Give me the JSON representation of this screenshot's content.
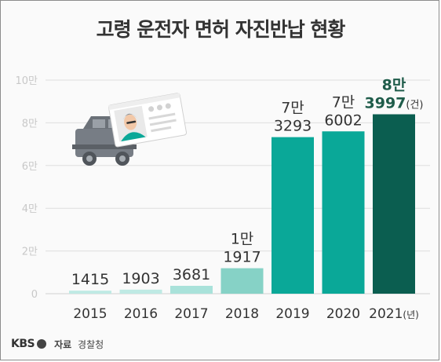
{
  "title": "고령 운전자 면허 자진반납 현황",
  "footer": {
    "logo": "KBS",
    "source_label": "자료",
    "source_value": "경찰청"
  },
  "colors": {
    "axis_text": "#c8c8c8",
    "grid": "#dedede",
    "label": "#333333",
    "highlight_label": "#1f5c4a",
    "bars": [
      "#bfeae4",
      "#bfeae4",
      "#a9e2da",
      "#86d2c6",
      "#0aa898",
      "#0aa898",
      "#0b5e50"
    ]
  },
  "illustration": {
    "icons": [
      "truck-icon",
      "license-card-icon",
      "driver-portrait-icon"
    ]
  },
  "chart_data": {
    "type": "bar",
    "title": "고령 운전자 면허 자진반납 현황",
    "categories": [
      "2015",
      "2016",
      "2017",
      "2018",
      "2019",
      "2020",
      "2021"
    ],
    "category_labels": [
      "2015",
      "2016",
      "2017",
      "2018",
      "2019",
      "2020",
      "2021(년)"
    ],
    "values": [
      1415,
      1903,
      3681,
      11917,
      73293,
      76002,
      83997
    ],
    "data_labels": [
      [
        "1415"
      ],
      [
        "1903"
      ],
      [
        "3681"
      ],
      [
        "1만",
        "1917"
      ],
      [
        "7만",
        "3293"
      ],
      [
        "7만",
        "6002"
      ],
      [
        "8만",
        "3997(건)"
      ]
    ],
    "yticks": [
      0,
      20000,
      40000,
      60000,
      80000,
      100000
    ],
    "ytick_labels": [
      "0",
      "2만",
      "4만",
      "6만",
      "8만",
      "10만"
    ],
    "ylim": [
      0,
      100000
    ],
    "grid": true,
    "highlight_index": 6
  }
}
